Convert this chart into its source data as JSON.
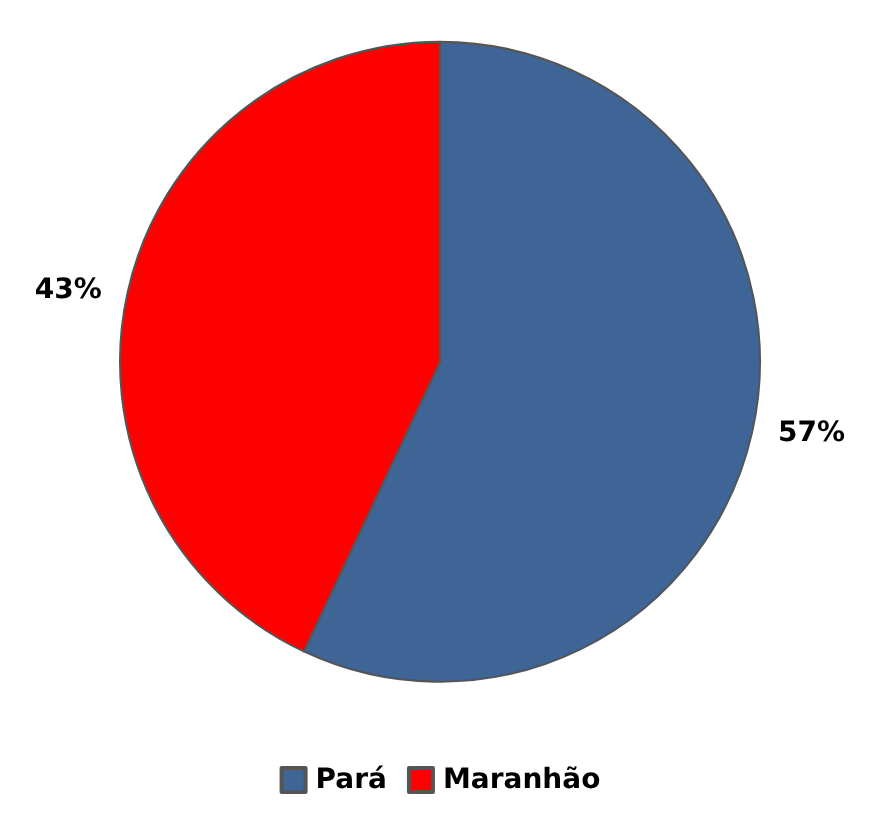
{
  "chart_data": {
    "type": "pie",
    "categories": [
      "Pará",
      "Maranhão"
    ],
    "values": [
      57,
      43
    ],
    "colors": [
      "#3f6496",
      "#ff0000"
    ],
    "value_labels": [
      "57%",
      "43%"
    ],
    "legend": "bottom"
  }
}
